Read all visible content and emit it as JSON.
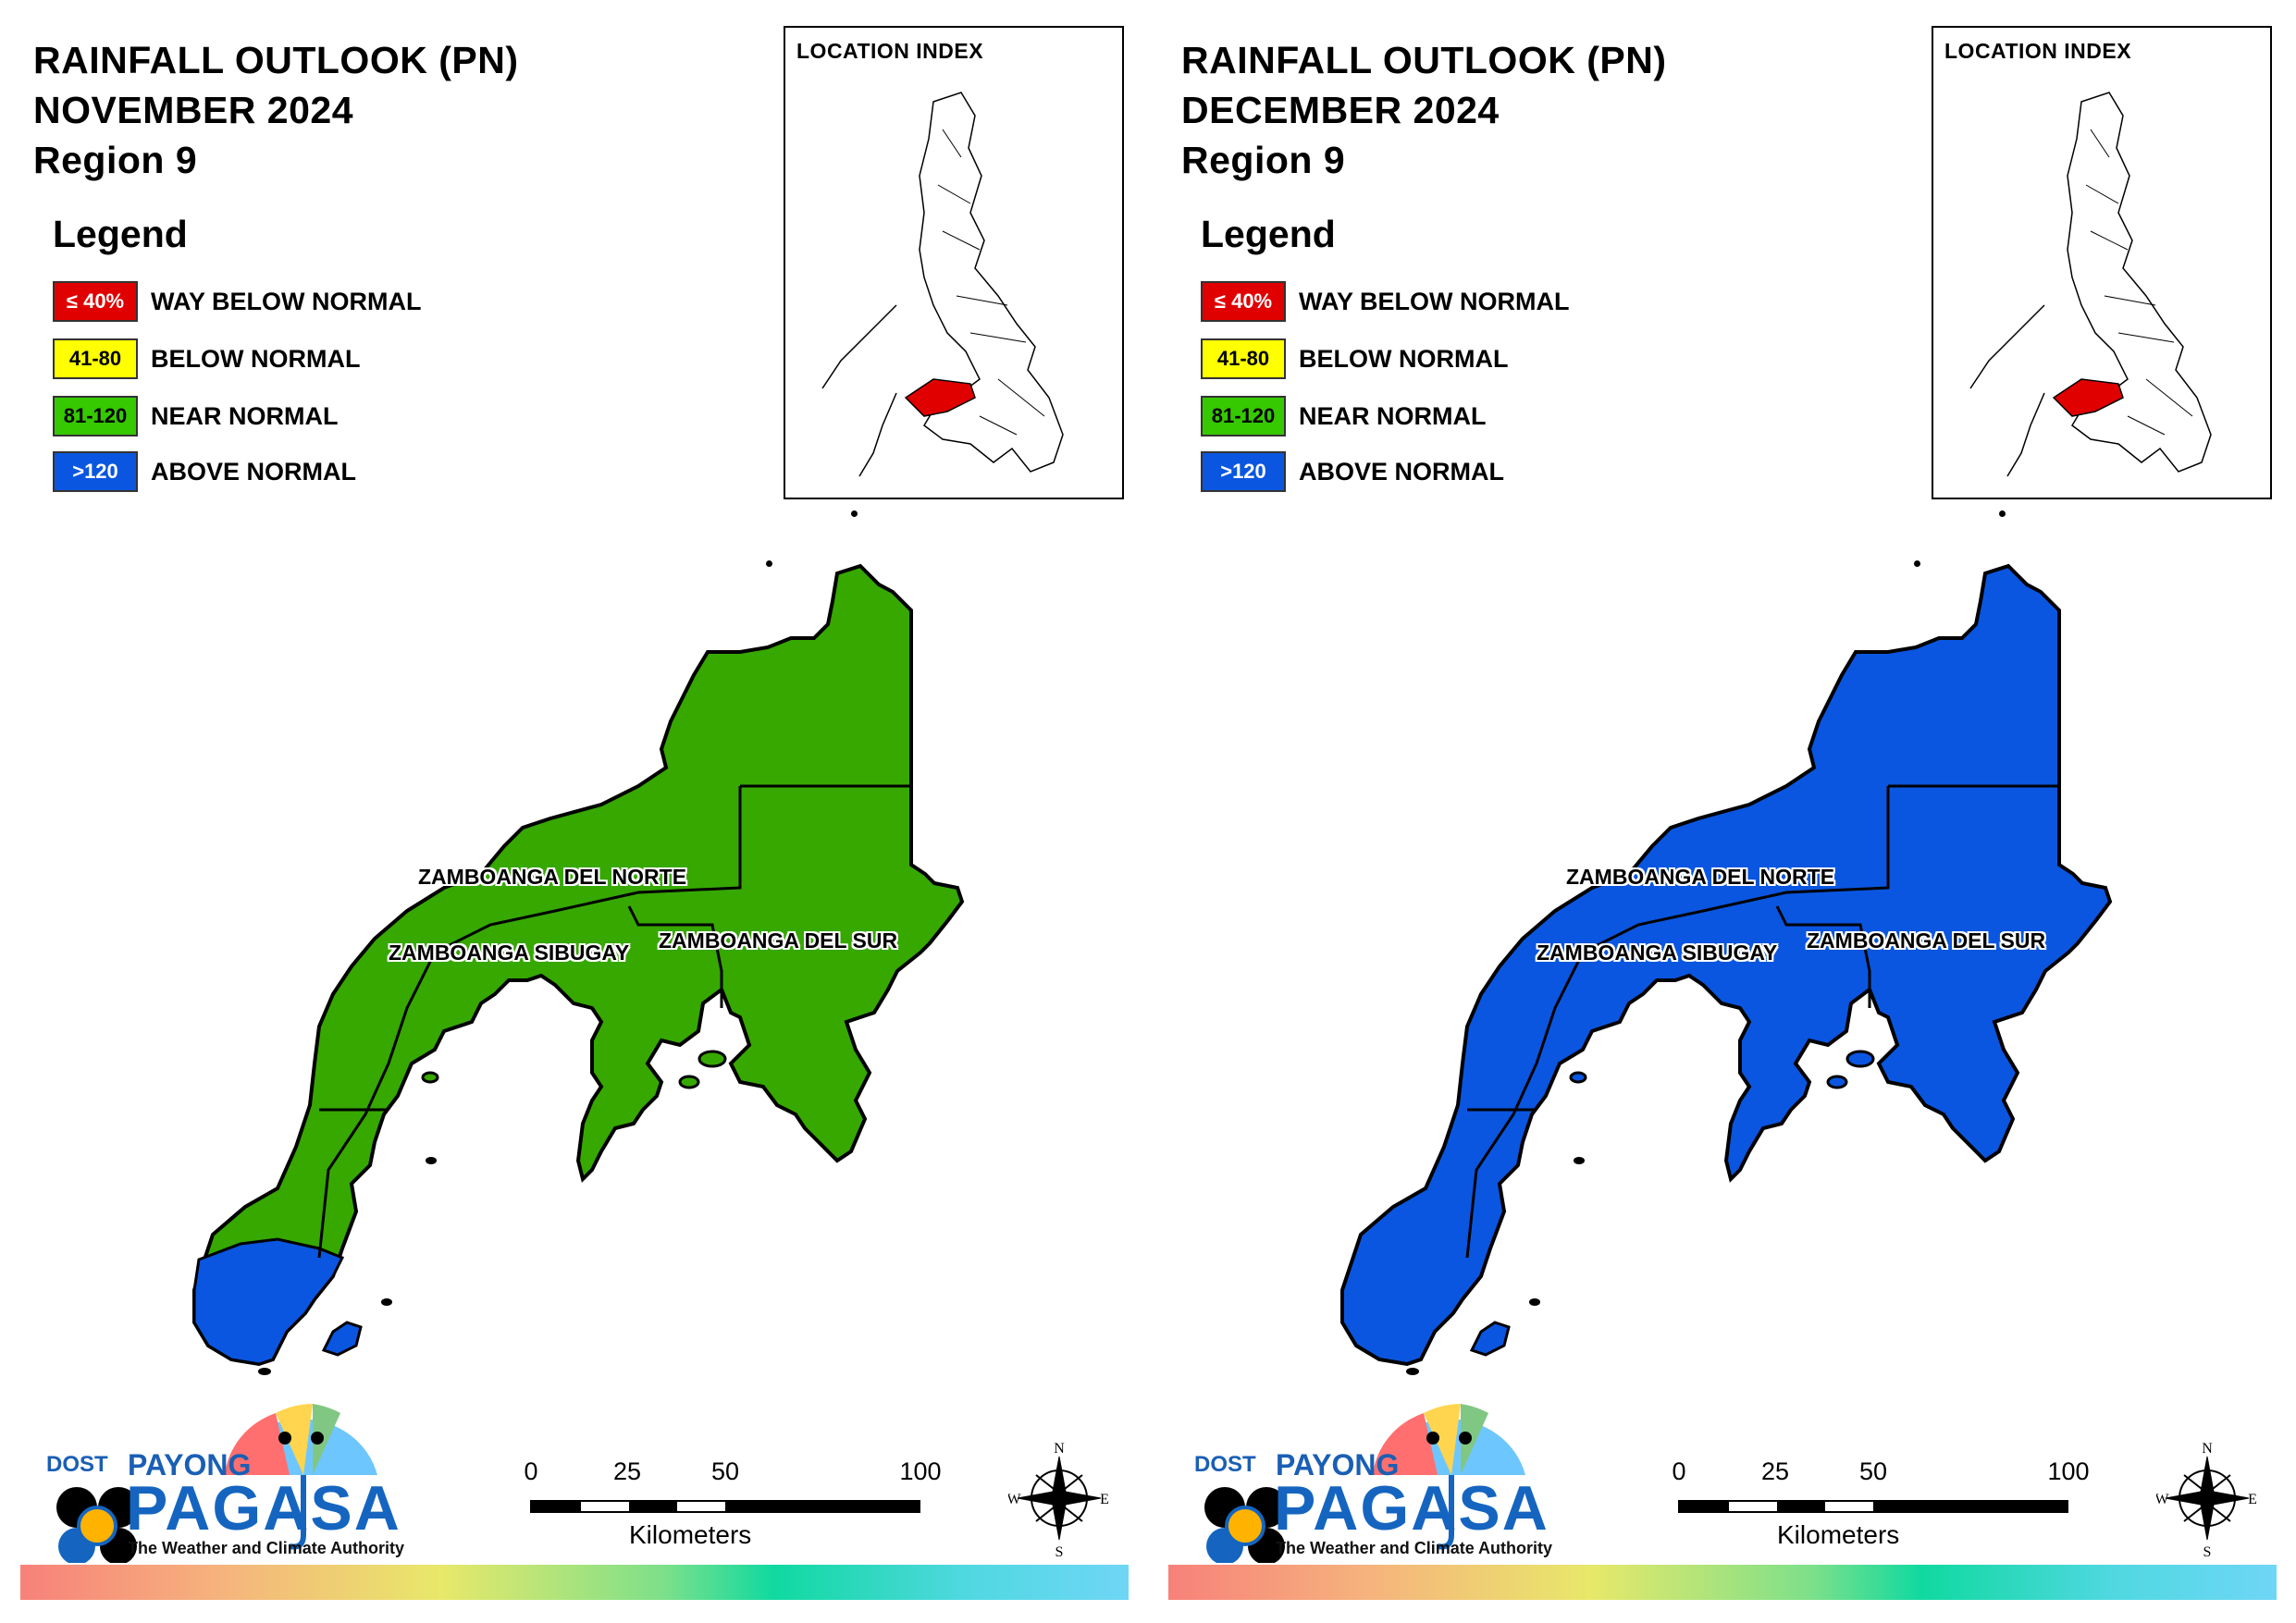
{
  "panels": [
    {
      "title_line1": "RAINFALL OUTLOOK (PN)",
      "title_line2": "NOVEMBER 2024",
      "title_line3": "Region 9",
      "main_fill": "#36a800",
      "southwest_fill": "#0a56e0"
    },
    {
      "title_line1": "RAINFALL OUTLOOK (PN)",
      "title_line2": "DECEMBER 2024",
      "title_line3": "Region 9",
      "main_fill": "#0a56e0",
      "southwest_fill": "#0a56e0"
    }
  ],
  "legend": {
    "title": "Legend",
    "items": [
      {
        "swatch_text": "≤ 40%",
        "label": "WAY BELOW NORMAL",
        "color": "#e00000",
        "text_color": "#ffffff"
      },
      {
        "swatch_text": "41-80",
        "label": "BELOW NORMAL",
        "color": "#ffff00",
        "text_color": "#000000"
      },
      {
        "swatch_text": "81-120",
        "label": "NEAR NORMAL",
        "color": "#36c800",
        "text_color": "#000000"
      },
      {
        "swatch_text": ">120",
        "label": "ABOVE NORMAL",
        "color": "#0a56e0",
        "text_color": "#ffffff"
      }
    ]
  },
  "location_index": {
    "title": "LOCATION INDEX",
    "highlight_color": "#e00000"
  },
  "provinces": {
    "norte": "ZAMBOANGA DEL NORTE",
    "sibugay": "ZAMBOANGA SIBUGAY",
    "sur": "ZAMBOANGA DEL SUR"
  },
  "scale_bar": {
    "ticks": [
      "0",
      "25",
      "50",
      "100"
    ],
    "unit": "Kilometers"
  },
  "compass": {
    "n": "N",
    "s": "S",
    "e": "E",
    "w": "W"
  },
  "logo": {
    "dost": "DOST",
    "payong": "PAYONG",
    "pagasa": "PAGASA",
    "tagline": "The Weather and Climate Authority"
  }
}
